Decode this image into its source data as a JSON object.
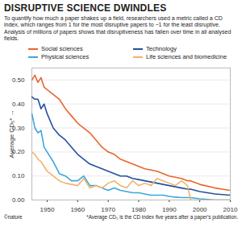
{
  "chart_data": {
    "type": "line",
    "title": "DISRUPTIVE SCIENCE DWINDLES",
    "subtitle": "To quantify how much a paper shakes up a field, researchers used a metric called a CD index, which ranges from 1 for the most disruptive papers to −1 for the least disruptive. Analysis of millions of papers shows that disruptiveness has fallen over time in all analysed fields.",
    "y_label": "Average CD₅*",
    "footnote": "*Average CD₅ is the CD index five years after a paper's publication.",
    "credit": "©nature",
    "x": [
      1945,
      1946,
      1947,
      1948,
      1949,
      1950,
      1952,
      1954,
      1956,
      1958,
      1960,
      1962,
      1964,
      1966,
      1968,
      1970,
      1972,
      1974,
      1976,
      1978,
      1980,
      1982,
      1984,
      1986,
      1988,
      1990,
      1992,
      1994,
      1996,
      1997,
      2000,
      2005,
      2010
    ],
    "series": [
      {
        "name": "Social sciences",
        "color": "#e8662c",
        "values": [
          0.5,
          0.52,
          0.49,
          0.51,
          0.47,
          0.46,
          0.44,
          0.42,
          0.38,
          0.35,
          0.32,
          0.3,
          0.28,
          0.25,
          0.22,
          0.2,
          0.19,
          0.17,
          0.16,
          0.15,
          0.14,
          0.13,
          0.125,
          0.12,
          0.11,
          0.1,
          0.095,
          0.09,
          0.08,
          0.08,
          0.065,
          0.05,
          0.04
        ]
      },
      {
        "name": "Technology",
        "color": "#23509f",
        "values": [
          0.43,
          0.42,
          0.42,
          0.38,
          0.4,
          0.36,
          0.3,
          0.27,
          0.25,
          0.22,
          0.19,
          0.17,
          0.15,
          0.14,
          0.13,
          0.12,
          0.11,
          0.1,
          0.1,
          0.09,
          0.085,
          0.08,
          0.075,
          0.07,
          0.065,
          0.06,
          0.055,
          0.05,
          0.045,
          0.045,
          0.035,
          0.025,
          0.02
        ]
      },
      {
        "name": "Physical sciences",
        "color": "#3aa7df",
        "values": [
          0.36,
          0.3,
          0.28,
          0.29,
          0.22,
          0.2,
          0.16,
          0.11,
          0.1,
          0.08,
          0.08,
          0.1,
          0.06,
          0.06,
          0.05,
          0.04,
          0.05,
          0.04,
          0.035,
          0.03,
          0.03,
          0.025,
          0.02,
          0.02,
          0.02,
          0.015,
          0.012,
          0.01,
          0.01,
          0.01,
          0.005,
          0,
          0
        ]
      },
      {
        "name": "Life sciences and biomedicine",
        "color": "#f4b26a",
        "values": [
          0.2,
          0.19,
          0.17,
          0.16,
          0.14,
          0.12,
          0.1,
          0.08,
          0.07,
          0.065,
          0.06,
          0.09,
          0.05,
          0.06,
          0.05,
          0.07,
          0.08,
          0.06,
          0.05,
          0.08,
          0.06,
          0.07,
          0.06,
          0.09,
          0.08,
          0.07,
          0.06,
          0.08,
          0.06,
          0,
          0,
          0,
          0
        ]
      }
    ],
    "xlim": [
      1945,
      2010
    ],
    "xticks": [
      1950,
      1960,
      1970,
      1980,
      1990,
      2000,
      2010
    ],
    "ylim": [
      0,
      0.55
    ],
    "yticks": [
      0,
      0.1,
      0.2,
      0.3,
      0.4,
      0.5
    ],
    "grid": true,
    "legend": "top"
  }
}
